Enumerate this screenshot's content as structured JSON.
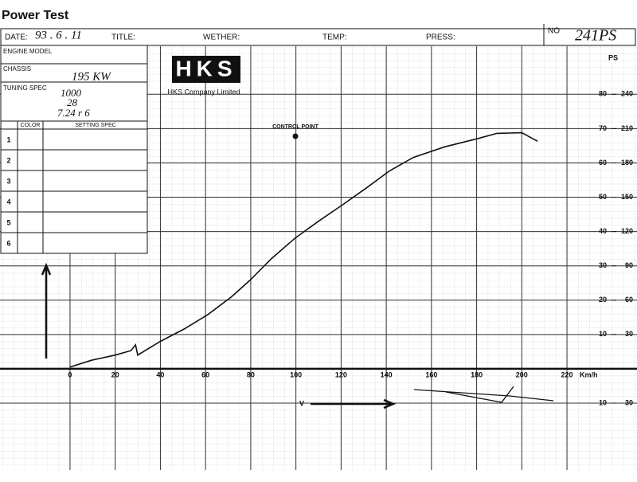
{
  "header": {
    "title": "Power Test",
    "date_label": "DATE:",
    "date": "93 . 6 . 11",
    "title_label": "TITLE:",
    "wether_label": "WETHER:",
    "temp_label": "TEMP:",
    "press_label": "PRESS:",
    "no_label": "NO",
    "no": "241PS"
  },
  "spec": {
    "engine_model": "ENGINE MODEL",
    "chassis": "CHASSIS",
    "chassis_note": "195 KW",
    "tuning_spec": "TUNING SPEC",
    "tuning_notes": [
      "1000",
      "28",
      "7.24 r 6"
    ],
    "color_header": "COLOR",
    "setting_header": "SETTING SPEC",
    "rows": [
      "1",
      "2",
      "3",
      "4",
      "5",
      "6"
    ]
  },
  "logo": {
    "mark": "HKS",
    "company": "HKS Company Limited"
  },
  "chart_data": {
    "type": "line",
    "color": "#111111",
    "y_unit": "PS",
    "x_unit": "Km/h",
    "annotations": {
      "control_point": "CONTROL POINT",
      "arrow": "V"
    },
    "x": [
      0,
      9.5,
      20,
      27,
      29,
      30,
      40,
      50.5,
      61,
      71.5,
      80,
      89,
      99.5,
      110,
      120.5,
      131,
      141.5,
      152,
      166,
      180,
      189,
      200,
      207
    ],
    "values": [
      0.5,
      2.5,
      4,
      5.3,
      7,
      4,
      8,
      11.6,
      15.8,
      21,
      26,
      32,
      38,
      43,
      47.7,
      52.6,
      57.7,
      61.6,
      64.7,
      67,
      68.6,
      68.8,
      66.3
    ],
    "xlim": [
      -31,
      251
    ],
    "xticks": [
      0,
      20,
      40,
      60,
      80,
      100,
      120,
      140,
      160,
      180,
      200,
      220
    ],
    "ylim": [
      -29.5,
      94
    ],
    "yticks": [
      {
        "value": -10,
        "label": "10"
      },
      10,
      20,
      30,
      40,
      50,
      60,
      70,
      80
    ],
    "y2lim": [
      -88.5,
      282
    ],
    "y2ticks": [
      {
        "value": -30,
        "label": "30"
      },
      30,
      60,
      90,
      120,
      150,
      180,
      210,
      240
    ],
    "grid": true
  }
}
